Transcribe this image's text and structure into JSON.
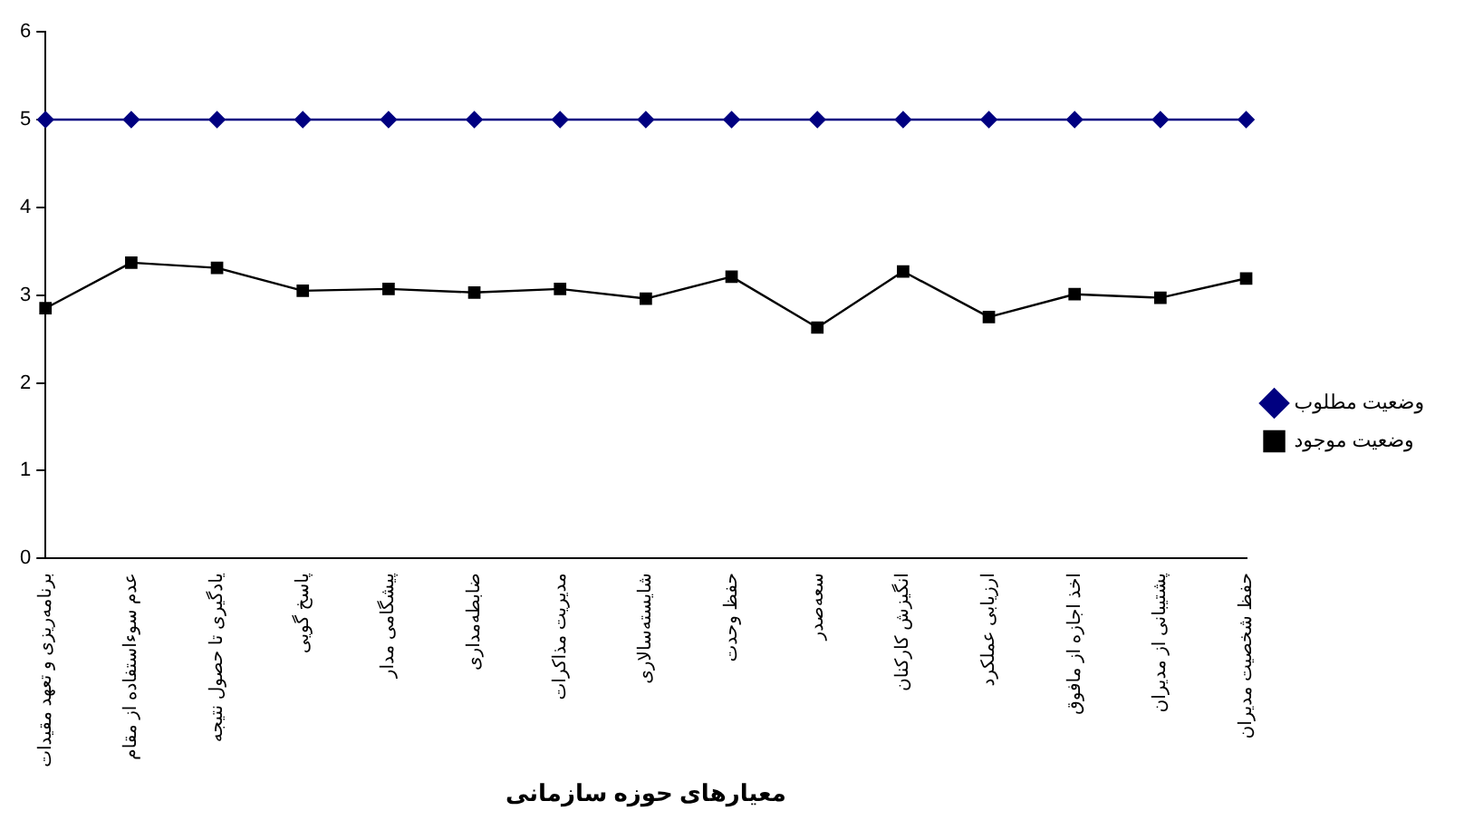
{
  "chart_data": {
    "type": "line",
    "xlabel": "معیارهای حوزه سازمانی",
    "categories": [
      "برنامه‌ریزی و تعهد مقیدات",
      "عدم سوءاستفاده از مقام",
      "یادگیری تا حصول نتیجه",
      "پاسخ گویی",
      "پیشگامی مدار",
      "ضابطه‌مداری",
      "مدیریت مذاکرات",
      "شایسته‌سالاری",
      "حفظ وحدت",
      "سعه‌صدر",
      "انگیزش کارکنان",
      "ارزیابی عملکرد",
      "اخذ اجازه از مافوق",
      "پشتیبانی از مدیران",
      "حفظ شخصیت مدیران"
    ],
    "series": [
      {
        "name": "وضعیت مطلوب",
        "color": "#000080",
        "marker": "diamond",
        "values": [
          5,
          5,
          5,
          5,
          5,
          5,
          5,
          5,
          5,
          5,
          5,
          5,
          5,
          5,
          5
        ]
      },
      {
        "name": "وضعیت موجود",
        "color": "#000000",
        "marker": "square",
        "values": [
          2.85,
          3.37,
          3.31,
          3.05,
          3.07,
          3.03,
          3.07,
          2.96,
          3.21,
          2.63,
          3.27,
          2.75,
          3.01,
          2.97,
          3.19
        ]
      }
    ],
    "ylim": [
      0,
      6
    ],
    "yticks": [
      0,
      1,
      2,
      3,
      4,
      5,
      6
    ],
    "grid": false,
    "legend": "right",
    "line_style": "solid"
  }
}
